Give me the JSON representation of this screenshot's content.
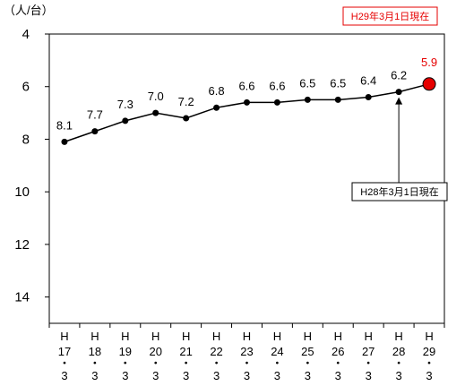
{
  "chart_data": {
    "type": "line",
    "unit_label": "（人/台）",
    "y_inverted": true,
    "ylim": [
      4,
      15
    ],
    "yticks": [
      "4",
      "6",
      "8",
      "10",
      "12",
      "14"
    ],
    "categories": [
      [
        "H",
        "17",
        "・",
        "3"
      ],
      [
        "H",
        "18",
        "・",
        "3"
      ],
      [
        "H",
        "19",
        "・",
        "3"
      ],
      [
        "H",
        "20",
        "・",
        "3"
      ],
      [
        "H",
        "21",
        "・",
        "3"
      ],
      [
        "H",
        "22",
        "・",
        "3"
      ],
      [
        "H",
        "23",
        "・",
        "3"
      ],
      [
        "H",
        "24",
        "・",
        "3"
      ],
      [
        "H",
        "25",
        "・",
        "3"
      ],
      [
        "H",
        "26",
        "・",
        "3"
      ],
      [
        "H",
        "27",
        "・",
        "3"
      ],
      [
        "H",
        "28",
        "・",
        "3"
      ],
      [
        "H",
        "29",
        "・",
        "3"
      ]
    ],
    "values": [
      8.1,
      7.7,
      7.3,
      7.0,
      7.2,
      6.8,
      6.6,
      6.6,
      6.5,
      6.5,
      6.4,
      6.2,
      5.9
    ],
    "value_labels": [
      "8.1",
      "7.7",
      "7.3",
      "7.0",
      "7.2",
      "6.8",
      "6.6",
      "6.6",
      "6.5",
      "6.5",
      "6.4",
      "6.2",
      "5.9"
    ],
    "highlight_index": 12,
    "grid": false,
    "colors": {
      "line": "#000000",
      "marker": "#000000",
      "highlight_fill": "#e60000",
      "highlight_text": "#e60000",
      "axis": "#000000"
    },
    "callouts": [
      {
        "text": "H29年3月1日現在",
        "color": "#e60000",
        "target_index": 12,
        "arrow": false
      },
      {
        "text": "H28年3月1日現在",
        "color": "#000000",
        "target_index": 11,
        "arrow": true
      }
    ]
  }
}
